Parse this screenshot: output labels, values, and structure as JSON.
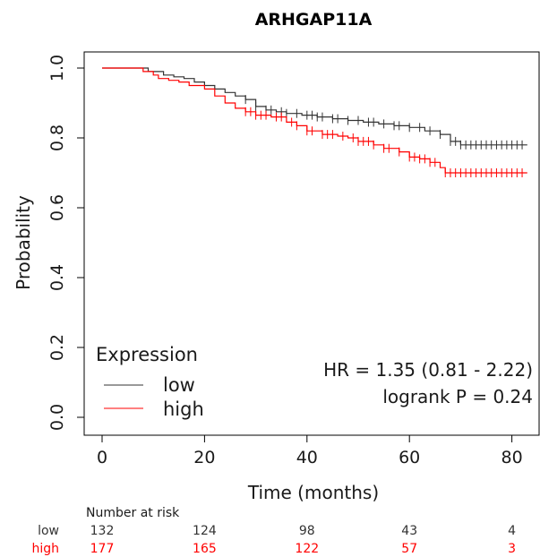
{
  "chart_data": {
    "type": "line",
    "title": "ARHGAP11A",
    "xlabel": "Time (months)",
    "ylabel": "Probability",
    "xlim": [
      0,
      84
    ],
    "ylim": [
      0,
      1.05
    ],
    "x_ticks": [
      "0",
      "20",
      "40",
      "60",
      "80"
    ],
    "y_ticks": [
      "0.0",
      "0.2",
      "0.4",
      "0.6",
      "0.8",
      "1.0"
    ],
    "legend_title": "Expression",
    "legend_position": "bottom-left",
    "series": [
      {
        "name": "low",
        "color": "#333333",
        "x": [
          0,
          6,
          9,
          12,
          14,
          16,
          18,
          20,
          22,
          24,
          26,
          28,
          30,
          32,
          34,
          36,
          39,
          42,
          45,
          48,
          51,
          54,
          57,
          60,
          63,
          66,
          68,
          70,
          75,
          83
        ],
        "y": [
          1.0,
          1.0,
          0.99,
          0.98,
          0.975,
          0.97,
          0.96,
          0.95,
          0.94,
          0.93,
          0.92,
          0.91,
          0.89,
          0.88,
          0.875,
          0.87,
          0.865,
          0.86,
          0.855,
          0.85,
          0.845,
          0.84,
          0.835,
          0.83,
          0.82,
          0.81,
          0.79,
          0.78,
          0.78,
          0.78
        ],
        "censor_x": [
          28,
          30,
          32,
          33,
          35,
          36,
          38,
          40,
          41,
          42,
          43,
          45,
          46,
          48,
          50,
          52,
          53,
          55,
          57,
          58,
          60,
          62,
          64,
          66,
          68,
          69,
          70,
          71,
          72,
          73,
          74,
          75,
          76,
          77,
          78,
          79,
          80,
          81,
          82
        ]
      },
      {
        "name": "high",
        "color": "#ff0000",
        "x": [
          0,
          5,
          8,
          10,
          11,
          13,
          15,
          17,
          20,
          22,
          24,
          26,
          28,
          30,
          33,
          36,
          38,
          40,
          43,
          46,
          48,
          50,
          53,
          55,
          58,
          60,
          62,
          64,
          66,
          67,
          83
        ],
        "y": [
          1.0,
          1.0,
          0.99,
          0.98,
          0.97,
          0.965,
          0.96,
          0.95,
          0.94,
          0.92,
          0.9,
          0.885,
          0.875,
          0.865,
          0.86,
          0.845,
          0.835,
          0.82,
          0.81,
          0.805,
          0.8,
          0.79,
          0.78,
          0.77,
          0.76,
          0.745,
          0.74,
          0.73,
          0.715,
          0.7,
          0.7
        ],
        "censor_x": [
          28,
          29,
          30,
          31,
          32,
          34,
          35,
          37,
          38,
          40,
          41,
          43,
          44,
          45,
          47,
          49,
          50,
          51,
          52,
          53,
          55,
          56,
          58,
          60,
          61,
          62,
          63,
          64,
          65,
          67,
          68,
          69,
          70,
          71,
          72,
          73,
          74,
          75,
          76,
          77,
          78,
          79,
          80,
          81,
          82
        ]
      }
    ],
    "annotations": [
      "HR = 1.35 (0.81 - 2.22)",
      "logrank P = 0.24"
    ],
    "risk_table": {
      "header": "Number at risk",
      "time_points": [
        0,
        20,
        40,
        60,
        80
      ],
      "rows": [
        {
          "label": "low",
          "color": "#333333",
          "values": [
            "132",
            "124",
            "98",
            "43",
            "4"
          ]
        },
        {
          "label": "high",
          "color": "#ff0000",
          "values": [
            "177",
            "165",
            "122",
            "57",
            "3"
          ]
        }
      ]
    }
  }
}
